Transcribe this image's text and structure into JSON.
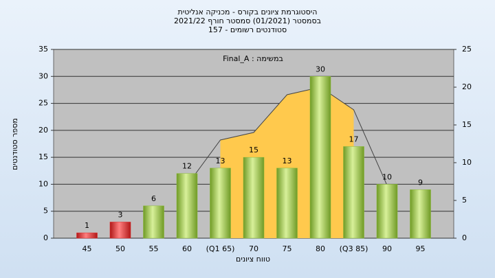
{
  "chart_data": {
    "type": "bar",
    "title": [
      "היסטוגרמת ציונים בקורס - מכניקה אנליטית",
      "בסמסטר  (01/2021)  סמסטר חורף 2021/22",
      "סטודנטים רשומים - 157"
    ],
    "annotation": "Final_A : במשימה",
    "x_label": "טווח ציונים",
    "y_label": "מספר סטודנטים",
    "categories": [
      "45",
      "50",
      "55",
      "60",
      "(Q1 65)",
      "70",
      "75",
      "80",
      "(Q3 85)",
      "90",
      "95"
    ],
    "series": [
      {
        "type": "area",
        "axis": "y2",
        "color": "#ffc94d",
        "values": [
          null,
          null,
          null,
          null,
          13,
          14,
          19,
          20,
          17,
          null,
          null
        ]
      },
      {
        "type": "line",
        "axis": "y2",
        "color": "#444444",
        "values": [
          null,
          null,
          null,
          7,
          13,
          14,
          19,
          20,
          17,
          7,
          null
        ]
      },
      {
        "type": "bar",
        "values": [
          1,
          3,
          6,
          12,
          13,
          15,
          13,
          30,
          17,
          10,
          9
        ],
        "colors": [
          "#e03030",
          "#e03030",
          "#8dbb3c",
          "#8dbb3c",
          "#8dbb3c",
          "#8dbb3c",
          "#8dbb3c",
          "#8dbb3c",
          "#8dbb3c",
          "#8dbb3c",
          "#8dbb3c"
        ]
      }
    ],
    "ylim": [
      0,
      35
    ],
    "yticks": [
      0,
      5,
      10,
      15,
      20,
      25,
      30,
      35
    ],
    "y2lim": [
      0,
      25
    ],
    "y2ticks": [
      0,
      5,
      10,
      15,
      20,
      25
    ],
    "grid": true
  }
}
